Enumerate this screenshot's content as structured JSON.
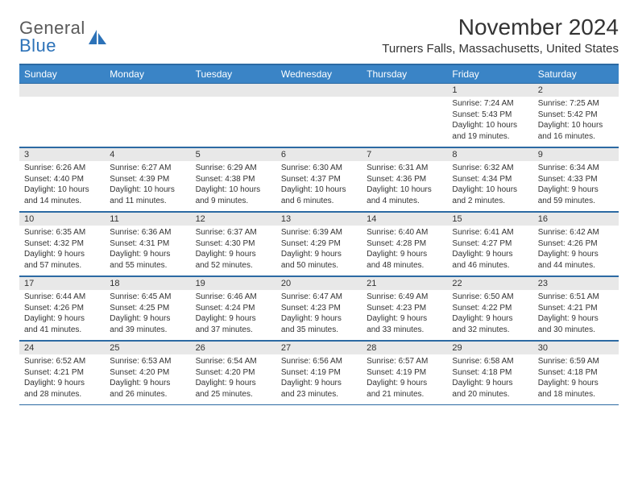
{
  "logo": {
    "text1": "General",
    "text2": "Blue"
  },
  "title": "November 2024",
  "location": "Turners Falls, Massachusetts, United States",
  "colors": {
    "header_bg": "#3a84c6",
    "header_border": "#2c6aa3",
    "number_bg": "#e8e8e8"
  },
  "day_headers": [
    "Sunday",
    "Monday",
    "Tuesday",
    "Wednesday",
    "Thursday",
    "Friday",
    "Saturday"
  ],
  "weeks": [
    [
      {
        "n": "",
        "sr": "",
        "ss": "",
        "dl": ""
      },
      {
        "n": "",
        "sr": "",
        "ss": "",
        "dl": ""
      },
      {
        "n": "",
        "sr": "",
        "ss": "",
        "dl": ""
      },
      {
        "n": "",
        "sr": "",
        "ss": "",
        "dl": ""
      },
      {
        "n": "",
        "sr": "",
        "ss": "",
        "dl": ""
      },
      {
        "n": "1",
        "sr": "Sunrise: 7:24 AM",
        "ss": "Sunset: 5:43 PM",
        "dl": "Daylight: 10 hours and 19 minutes."
      },
      {
        "n": "2",
        "sr": "Sunrise: 7:25 AM",
        "ss": "Sunset: 5:42 PM",
        "dl": "Daylight: 10 hours and 16 minutes."
      }
    ],
    [
      {
        "n": "3",
        "sr": "Sunrise: 6:26 AM",
        "ss": "Sunset: 4:40 PM",
        "dl": "Daylight: 10 hours and 14 minutes."
      },
      {
        "n": "4",
        "sr": "Sunrise: 6:27 AM",
        "ss": "Sunset: 4:39 PM",
        "dl": "Daylight: 10 hours and 11 minutes."
      },
      {
        "n": "5",
        "sr": "Sunrise: 6:29 AM",
        "ss": "Sunset: 4:38 PM",
        "dl": "Daylight: 10 hours and 9 minutes."
      },
      {
        "n": "6",
        "sr": "Sunrise: 6:30 AM",
        "ss": "Sunset: 4:37 PM",
        "dl": "Daylight: 10 hours and 6 minutes."
      },
      {
        "n": "7",
        "sr": "Sunrise: 6:31 AM",
        "ss": "Sunset: 4:36 PM",
        "dl": "Daylight: 10 hours and 4 minutes."
      },
      {
        "n": "8",
        "sr": "Sunrise: 6:32 AM",
        "ss": "Sunset: 4:34 PM",
        "dl": "Daylight: 10 hours and 2 minutes."
      },
      {
        "n": "9",
        "sr": "Sunrise: 6:34 AM",
        "ss": "Sunset: 4:33 PM",
        "dl": "Daylight: 9 hours and 59 minutes."
      }
    ],
    [
      {
        "n": "10",
        "sr": "Sunrise: 6:35 AM",
        "ss": "Sunset: 4:32 PM",
        "dl": "Daylight: 9 hours and 57 minutes."
      },
      {
        "n": "11",
        "sr": "Sunrise: 6:36 AM",
        "ss": "Sunset: 4:31 PM",
        "dl": "Daylight: 9 hours and 55 minutes."
      },
      {
        "n": "12",
        "sr": "Sunrise: 6:37 AM",
        "ss": "Sunset: 4:30 PM",
        "dl": "Daylight: 9 hours and 52 minutes."
      },
      {
        "n": "13",
        "sr": "Sunrise: 6:39 AM",
        "ss": "Sunset: 4:29 PM",
        "dl": "Daylight: 9 hours and 50 minutes."
      },
      {
        "n": "14",
        "sr": "Sunrise: 6:40 AM",
        "ss": "Sunset: 4:28 PM",
        "dl": "Daylight: 9 hours and 48 minutes."
      },
      {
        "n": "15",
        "sr": "Sunrise: 6:41 AM",
        "ss": "Sunset: 4:27 PM",
        "dl": "Daylight: 9 hours and 46 minutes."
      },
      {
        "n": "16",
        "sr": "Sunrise: 6:42 AM",
        "ss": "Sunset: 4:26 PM",
        "dl": "Daylight: 9 hours and 44 minutes."
      }
    ],
    [
      {
        "n": "17",
        "sr": "Sunrise: 6:44 AM",
        "ss": "Sunset: 4:26 PM",
        "dl": "Daylight: 9 hours and 41 minutes."
      },
      {
        "n": "18",
        "sr": "Sunrise: 6:45 AM",
        "ss": "Sunset: 4:25 PM",
        "dl": "Daylight: 9 hours and 39 minutes."
      },
      {
        "n": "19",
        "sr": "Sunrise: 6:46 AM",
        "ss": "Sunset: 4:24 PM",
        "dl": "Daylight: 9 hours and 37 minutes."
      },
      {
        "n": "20",
        "sr": "Sunrise: 6:47 AM",
        "ss": "Sunset: 4:23 PM",
        "dl": "Daylight: 9 hours and 35 minutes."
      },
      {
        "n": "21",
        "sr": "Sunrise: 6:49 AM",
        "ss": "Sunset: 4:23 PM",
        "dl": "Daylight: 9 hours and 33 minutes."
      },
      {
        "n": "22",
        "sr": "Sunrise: 6:50 AM",
        "ss": "Sunset: 4:22 PM",
        "dl": "Daylight: 9 hours and 32 minutes."
      },
      {
        "n": "23",
        "sr": "Sunrise: 6:51 AM",
        "ss": "Sunset: 4:21 PM",
        "dl": "Daylight: 9 hours and 30 minutes."
      }
    ],
    [
      {
        "n": "24",
        "sr": "Sunrise: 6:52 AM",
        "ss": "Sunset: 4:21 PM",
        "dl": "Daylight: 9 hours and 28 minutes."
      },
      {
        "n": "25",
        "sr": "Sunrise: 6:53 AM",
        "ss": "Sunset: 4:20 PM",
        "dl": "Daylight: 9 hours and 26 minutes."
      },
      {
        "n": "26",
        "sr": "Sunrise: 6:54 AM",
        "ss": "Sunset: 4:20 PM",
        "dl": "Daylight: 9 hours and 25 minutes."
      },
      {
        "n": "27",
        "sr": "Sunrise: 6:56 AM",
        "ss": "Sunset: 4:19 PM",
        "dl": "Daylight: 9 hours and 23 minutes."
      },
      {
        "n": "28",
        "sr": "Sunrise: 6:57 AM",
        "ss": "Sunset: 4:19 PM",
        "dl": "Daylight: 9 hours and 21 minutes."
      },
      {
        "n": "29",
        "sr": "Sunrise: 6:58 AM",
        "ss": "Sunset: 4:18 PM",
        "dl": "Daylight: 9 hours and 20 minutes."
      },
      {
        "n": "30",
        "sr": "Sunrise: 6:59 AM",
        "ss": "Sunset: 4:18 PM",
        "dl": "Daylight: 9 hours and 18 minutes."
      }
    ]
  ]
}
